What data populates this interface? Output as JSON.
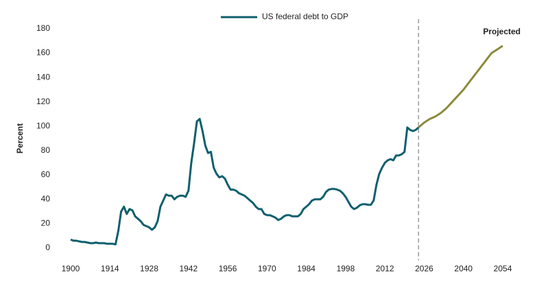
{
  "chart_data": {
    "type": "line",
    "y_label": "Percent",
    "annotation": "Projected",
    "vline_x": 2024,
    "xlim": [
      1896,
      2058
    ],
    "xticks": [
      1900,
      1914,
      1928,
      1942,
      1956,
      1970,
      1984,
      1998,
      2012,
      2026,
      2040,
      2054
    ],
    "ylim": [
      -5,
      185
    ],
    "yticks": [
      0,
      20,
      40,
      60,
      80,
      100,
      120,
      140,
      160,
      180
    ],
    "legend": "top",
    "series": [
      {
        "name": "US federal debt to GDP",
        "color": "#0e5f6e",
        "x": [
          1900,
          1901,
          1902,
          1903,
          1904,
          1905,
          1906,
          1907,
          1908,
          1909,
          1910,
          1911,
          1912,
          1913,
          1914,
          1915,
          1916,
          1917,
          1918,
          1919,
          1920,
          1921,
          1922,
          1923,
          1924,
          1925,
          1926,
          1927,
          1928,
          1929,
          1930,
          1931,
          1932,
          1933,
          1934,
          1935,
          1936,
          1937,
          1938,
          1939,
          1940,
          1941,
          1942,
          1943,
          1944,
          1945,
          1946,
          1947,
          1948,
          1949,
          1950,
          1951,
          1952,
          1953,
          1954,
          1955,
          1956,
          1957,
          1958,
          1959,
          1960,
          1961,
          1962,
          1963,
          1964,
          1965,
          1966,
          1967,
          1968,
          1969,
          1970,
          1971,
          1972,
          1973,
          1974,
          1975,
          1976,
          1977,
          1978,
          1979,
          1980,
          1981,
          1982,
          1983,
          1984,
          1985,
          1986,
          1987,
          1988,
          1989,
          1990,
          1991,
          1992,
          1993,
          1994,
          1995,
          1996,
          1997,
          1998,
          1999,
          2000,
          2001,
          2002,
          2003,
          2004,
          2005,
          2006,
          2007,
          2008,
          2009,
          2010,
          2011,
          2012,
          2013,
          2014,
          2015,
          2016,
          2017,
          2018,
          2019,
          2020,
          2021,
          2022,
          2023,
          2024
        ],
        "values": [
          7,
          6,
          6,
          5.5,
          5,
          5,
          4.5,
          4,
          4,
          4.5,
          4,
          4,
          4,
          3.5,
          3.5,
          3.5,
          3,
          14,
          30,
          34,
          28,
          32,
          31,
          26,
          24,
          22,
          19,
          18,
          17,
          15,
          17,
          22,
          34,
          39,
          44,
          43,
          43,
          40,
          42,
          43,
          43,
          42,
          47,
          70,
          86,
          104,
          106,
          96,
          84,
          78,
          79,
          66,
          61,
          58,
          59,
          57,
          52,
          48,
          48,
          47,
          45,
          44,
          43,
          41,
          39,
          37,
          34,
          32,
          32,
          28,
          27,
          27,
          26,
          25,
          23,
          24,
          26,
          27,
          27,
          26,
          26,
          26,
          28,
          32,
          34,
          36,
          39,
          40,
          40,
          40,
          42,
          46,
          48,
          48.5,
          48.5,
          48,
          47,
          45,
          42,
          38,
          34,
          32,
          33,
          35,
          36,
          36,
          35.5,
          35.5,
          39,
          52,
          61,
          66,
          70,
          72,
          73,
          72,
          76,
          76,
          77,
          79,
          99,
          97,
          96,
          97,
          99
        ]
      },
      {
        "color": "#8c8a3c",
        "x": [
          2024,
          2026,
          2028,
          2030,
          2032,
          2034,
          2036,
          2038,
          2040,
          2042,
          2044,
          2046,
          2048,
          2050,
          2052,
          2054
        ],
        "values": [
          99,
          103,
          106,
          108,
          111,
          115,
          120,
          125,
          130,
          136,
          142,
          148,
          154,
          160,
          163,
          166
        ]
      }
    ]
  }
}
